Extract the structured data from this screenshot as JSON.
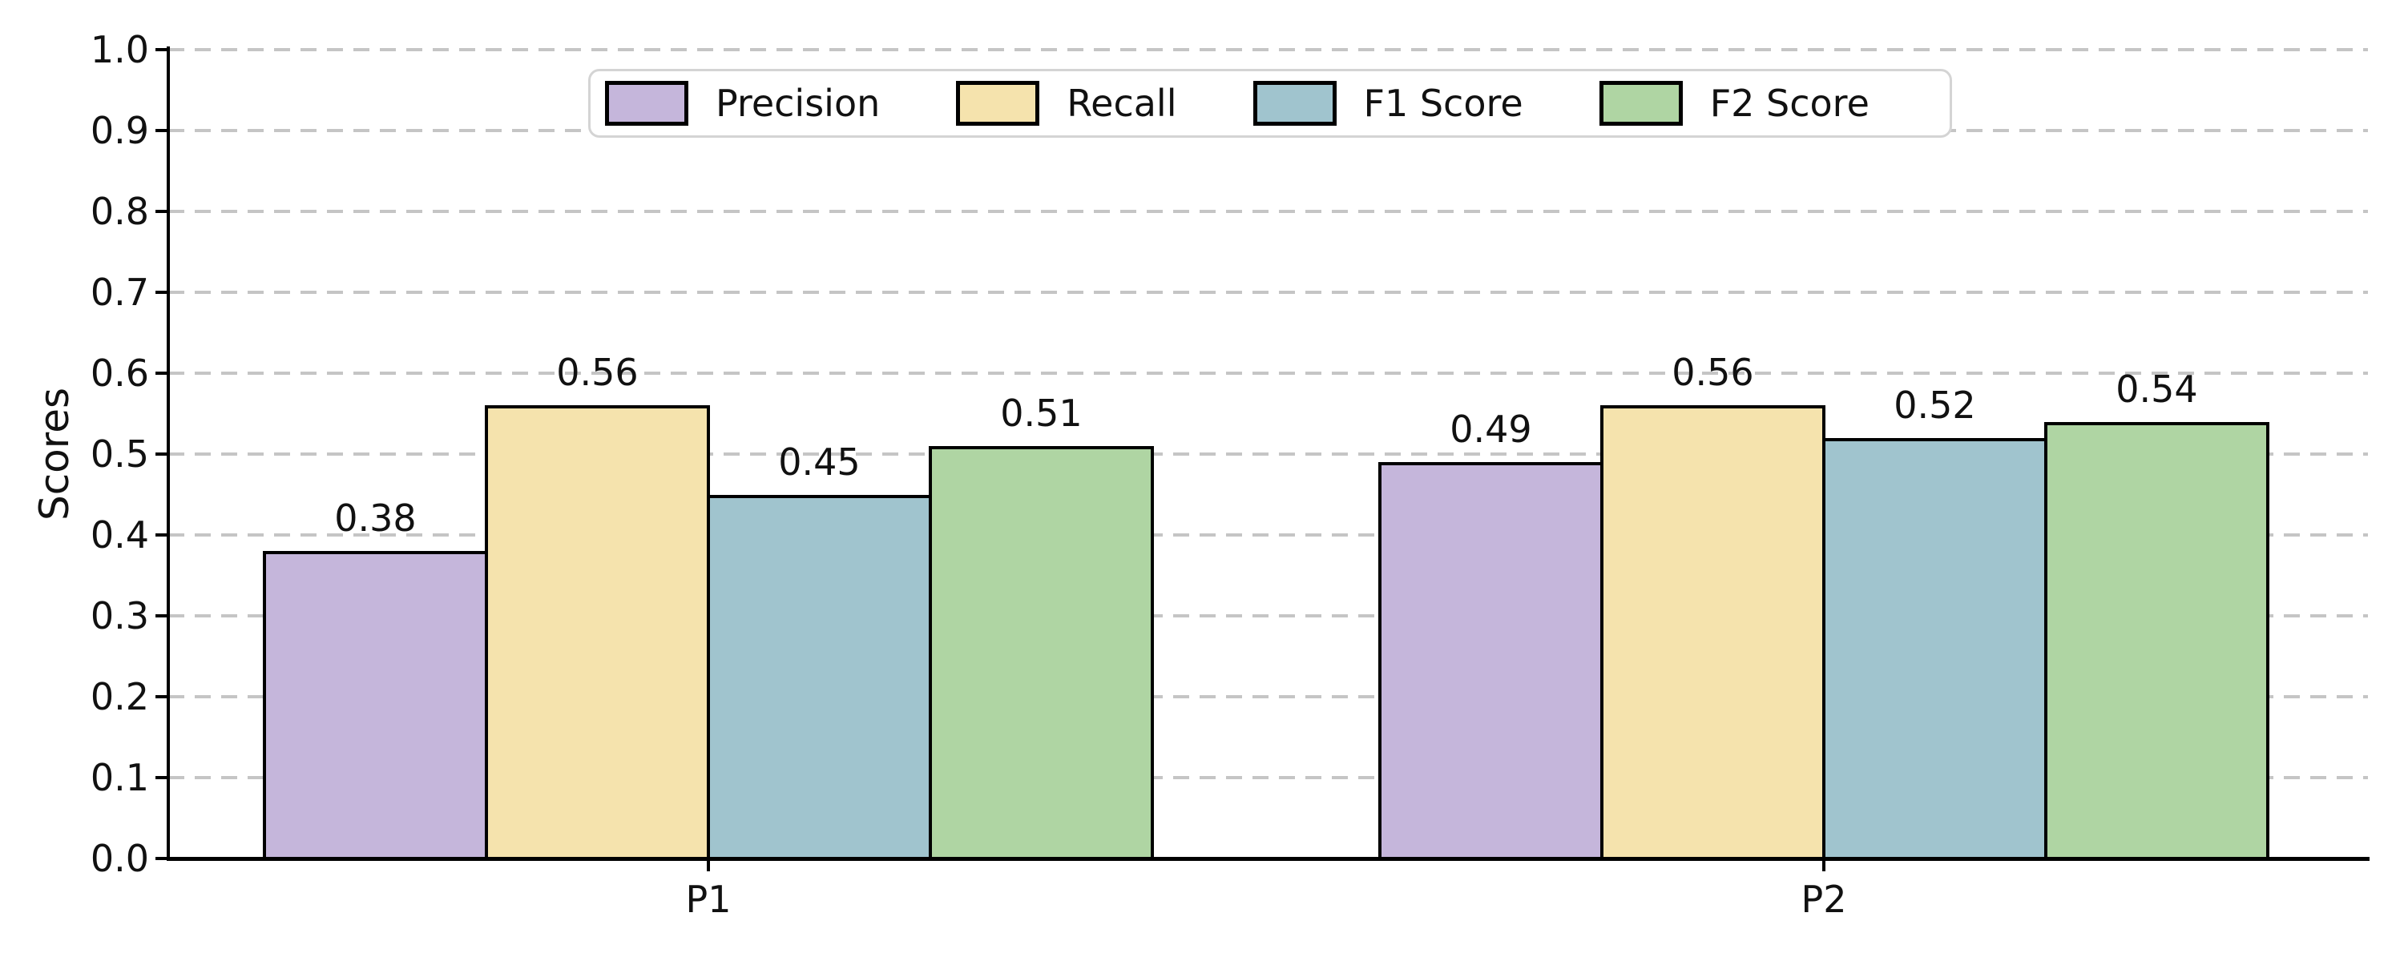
{
  "chart_data": {
    "type": "bar",
    "categories": [
      "P1",
      "P2"
    ],
    "series": [
      {
        "name": "Precision",
        "color": "#c5b6db",
        "values": [
          0.38,
          0.49
        ],
        "labels": [
          "0.38",
          "0.49"
        ]
      },
      {
        "name": "Recall",
        "color": "#f5e3ad",
        "values": [
          0.56,
          0.56
        ],
        "labels": [
          "0.56",
          "0.56"
        ]
      },
      {
        "name": "F1 Score",
        "color": "#a0c4ce",
        "values": [
          0.45,
          0.52
        ],
        "labels": [
          "0.45",
          "0.52"
        ]
      },
      {
        "name": "F2 Score",
        "color": "#afd5a3",
        "values": [
          0.51,
          0.54
        ],
        "labels": [
          "0.51",
          "0.54"
        ]
      }
    ],
    "title": "",
    "xlabel": "",
    "ylabel": "Scores",
    "ylim": [
      0.0,
      1.0
    ],
    "yticks": [
      "0.0",
      "0.1",
      "0.2",
      "0.3",
      "0.4",
      "0.5",
      "0.6",
      "0.7",
      "0.8",
      "0.9",
      "1.0"
    ],
    "grid": "horizontal-dashed",
    "grid_color": "#c5c5c5",
    "bar_edge_color": "#000000",
    "legend_position": "upper center",
    "legend_entries": [
      "Precision",
      "Recall",
      "F1 Score",
      "F2 Score"
    ]
  }
}
